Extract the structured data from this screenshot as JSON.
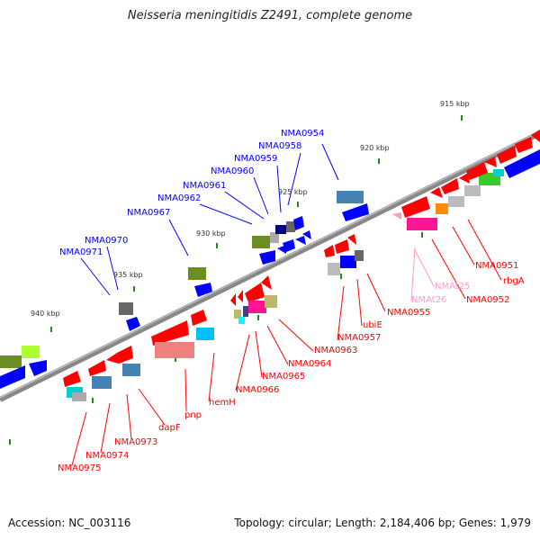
{
  "title": "Neisseria meningitidis Z2491, complete genome",
  "footer": {
    "accession": "Accession: NC_003116",
    "summary": "Topology: circular; Length: 2,184,406 bp; Genes: 1,979"
  },
  "ticks": [
    "915 kbp",
    "920 kbp",
    "925 kbp",
    "930 kbp",
    "935 kbp",
    "940 kbp"
  ],
  "forward_genes": [
    "NMA0954",
    "NMA0958",
    "NMA0959",
    "NMA0960",
    "NMA0961",
    "NMA0962",
    "NMA0967",
    "NMA0970",
    "NMA0971"
  ],
  "reverse_genes": [
    "NMA0951",
    "rbgA",
    "NMA0952",
    "NMAt25",
    "NMAt26",
    "NMA0955",
    "ubiE",
    "NMA0957",
    "NMA0963",
    "NMA0964",
    "NMA0965",
    "NMA0966",
    "hemH",
    "pnp",
    "dapF",
    "NMA0973",
    "NMA0974",
    "NMA0975"
  ],
  "colors": {
    "forward_label": "#0000ff",
    "reverse_label": "#ff0000",
    "trna_label": "#ff99cc",
    "backbone": "#808080"
  }
}
